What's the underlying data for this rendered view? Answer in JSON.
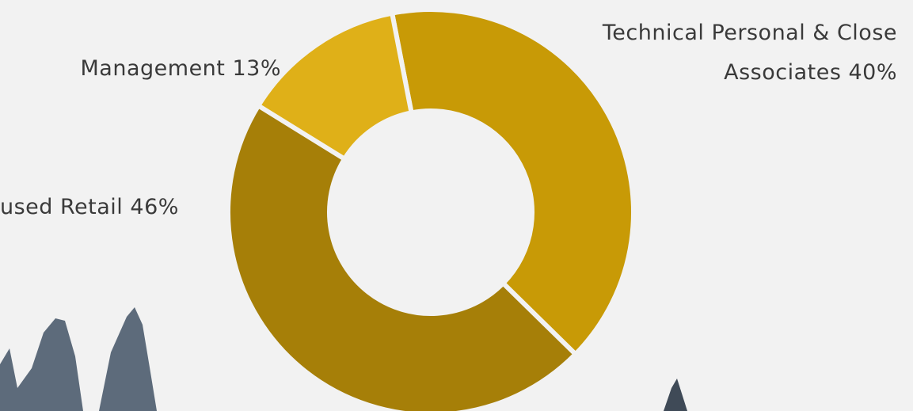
{
  "chart_data": {
    "type": "donut",
    "categories": [
      "Technical Personal & Close Associates",
      "used Retail",
      "Management"
    ],
    "values": [
      40,
      46,
      13
    ],
    "value_labels": [
      "40%",
      "46%",
      "13%"
    ],
    "colors": [
      "#c89a06",
      "#a67f08",
      "#dfb018"
    ]
  }
}
